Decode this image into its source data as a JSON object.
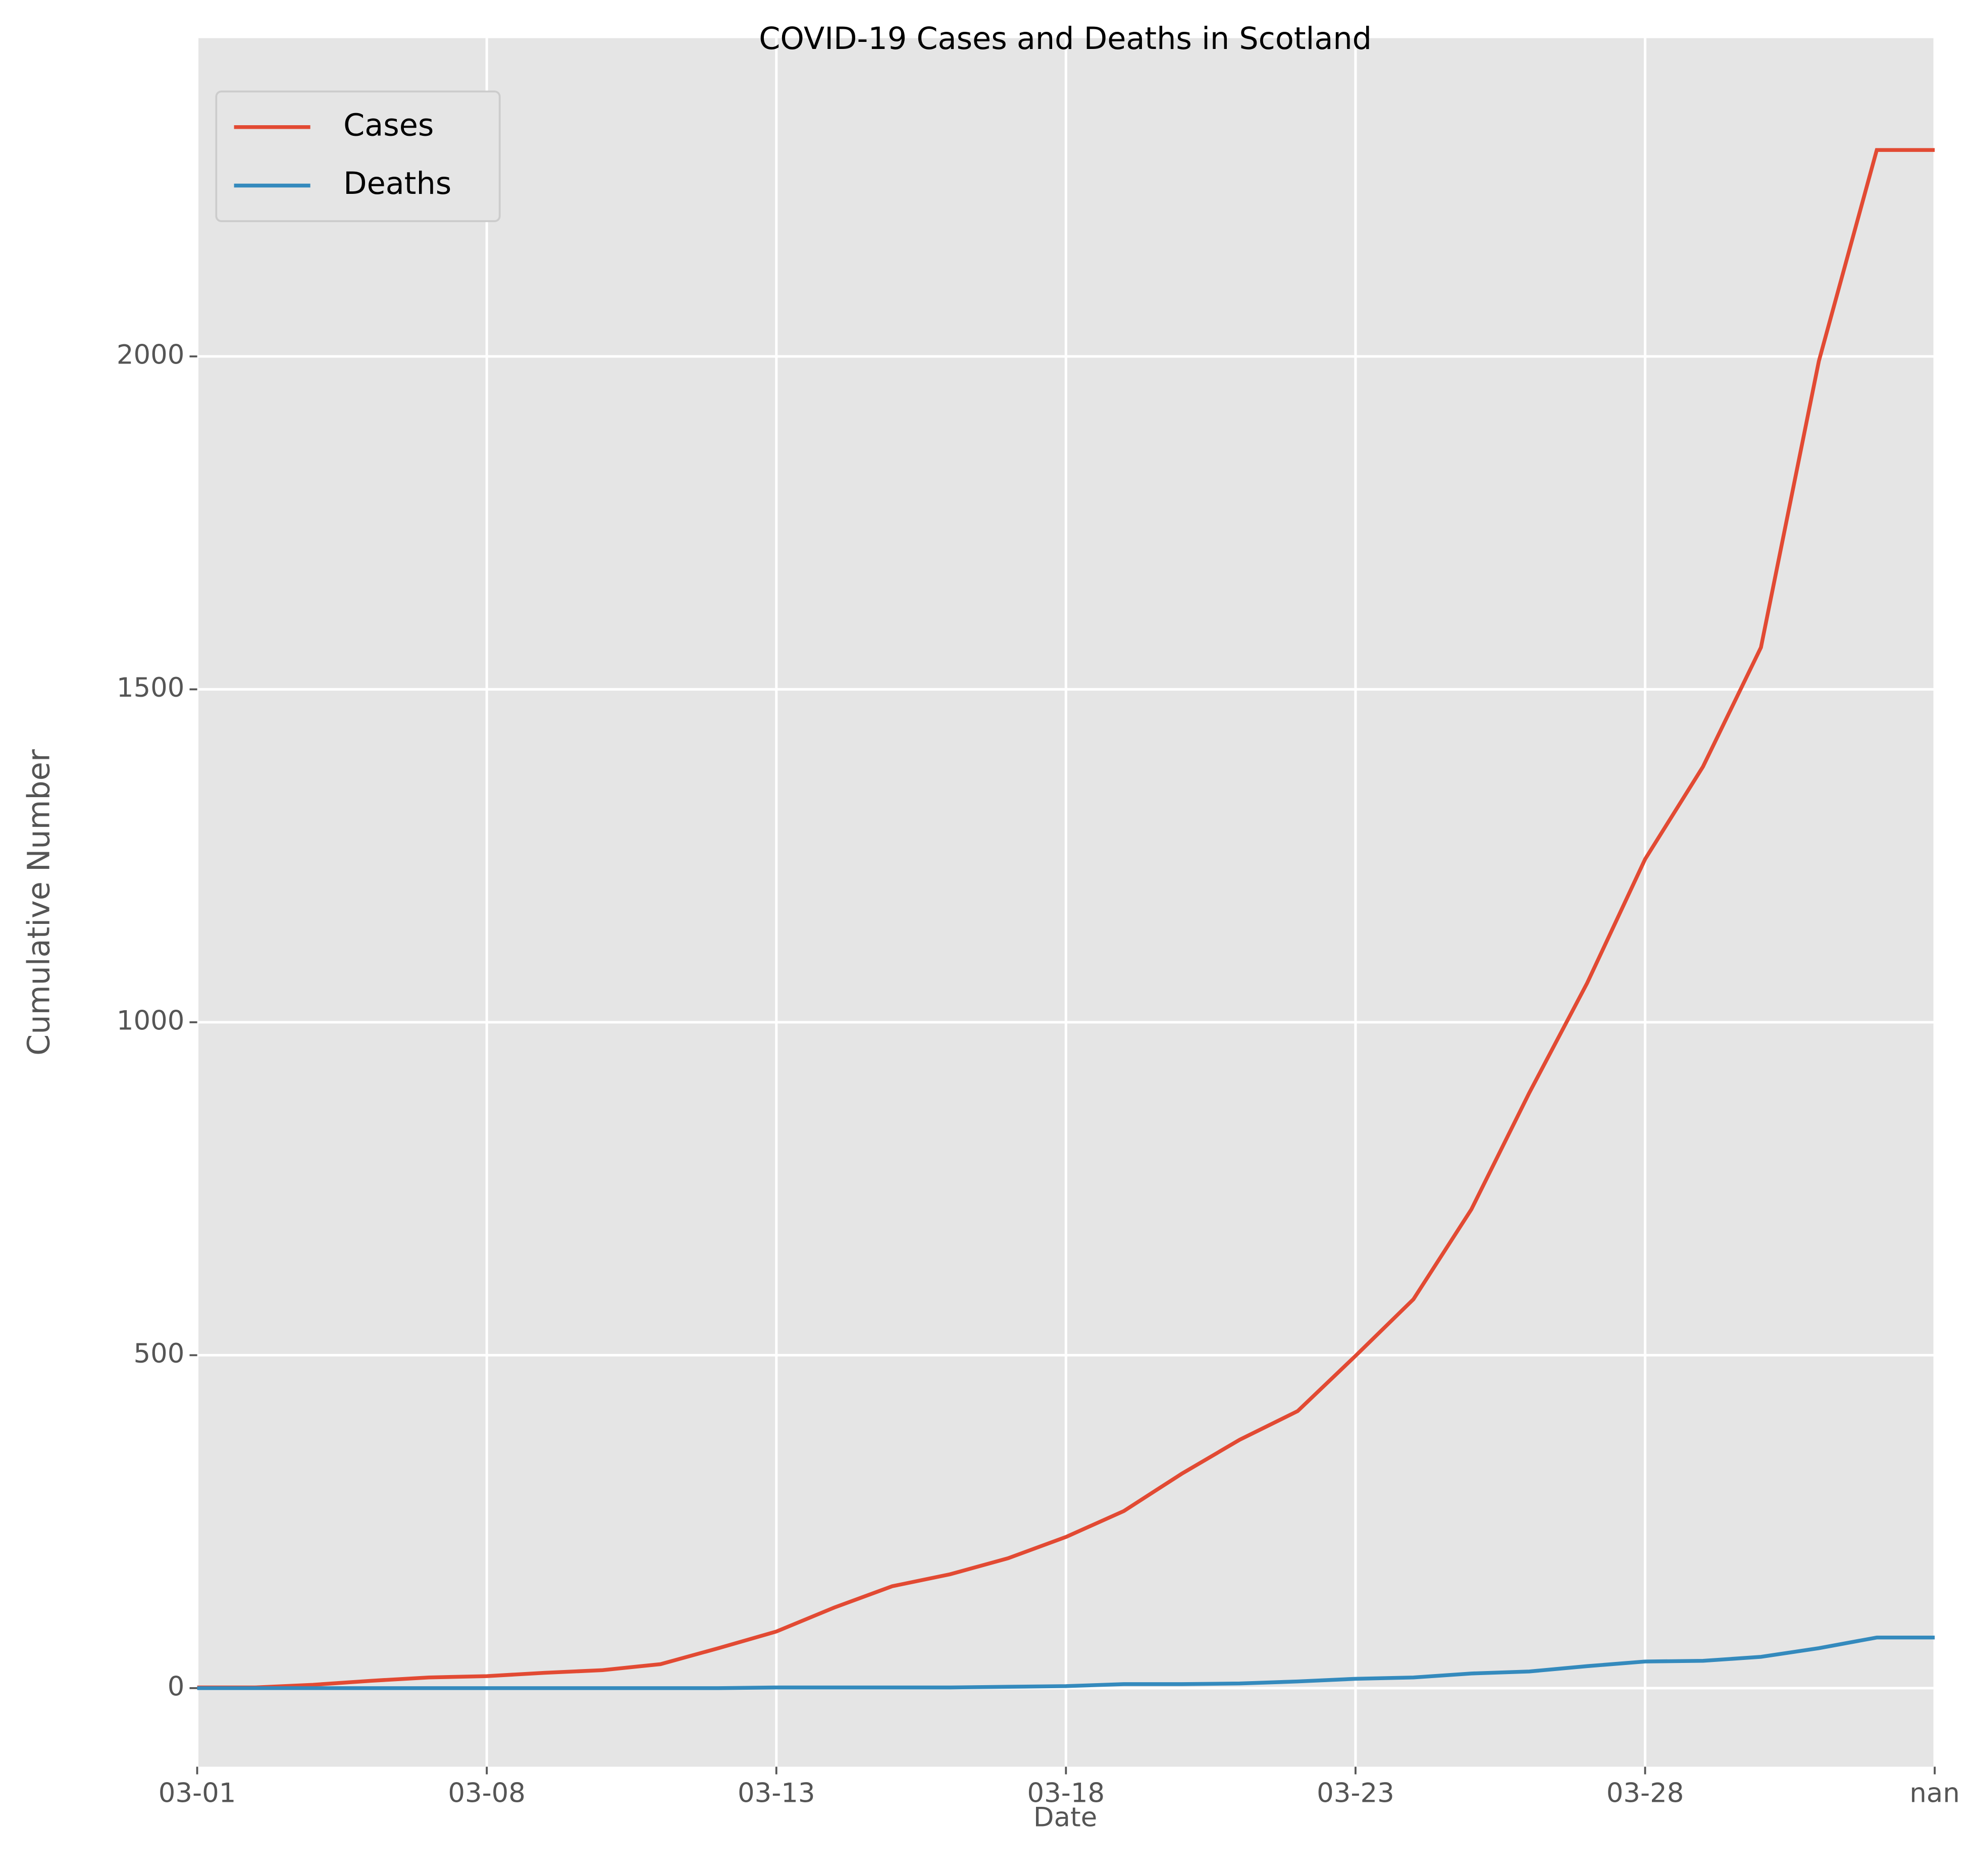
{
  "chart_data": {
    "type": "line",
    "title": "COVID-19 Cases and Deaths in Scotland",
    "xlabel": "Date",
    "ylabel": "Cumulative Number",
    "categories": [
      "03-01",
      null,
      null,
      null,
      null,
      "03-08",
      null,
      null,
      null,
      null,
      "03-13",
      null,
      null,
      null,
      null,
      "03-18",
      null,
      null,
      null,
      null,
      "03-23",
      null,
      null,
      null,
      null,
      "03-28",
      null,
      null,
      null,
      null,
      "nan"
    ],
    "series": [
      {
        "name": "Cases",
        "color": "#e24a33",
        "values": [
          1,
          1,
          5,
          11,
          16,
          18,
          23,
          27,
          36,
          60,
          85,
          121,
          153,
          171,
          195,
          227,
          266,
          322,
          373,
          416,
          499,
          584,
          719,
          894,
          1059,
          1245,
          1384,
          1563,
          1993,
          2310,
          2310
        ]
      },
      {
        "name": "Deaths",
        "color": "#348abd",
        "values": [
          0,
          0,
          0,
          0,
          0,
          0,
          0,
          0,
          0,
          0,
          1,
          1,
          1,
          1,
          2,
          3,
          6,
          6,
          7,
          10,
          14,
          16,
          22,
          25,
          33,
          40,
          41,
          47,
          60,
          76,
          76
        ]
      }
    ],
    "ylim": [
      -118,
      2478
    ],
    "yticks": [
      0,
      500,
      1000,
      1500,
      2000
    ],
    "grid": true,
    "legend": "upper left"
  }
}
